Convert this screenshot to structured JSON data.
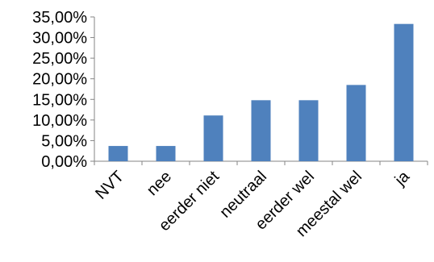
{
  "chart_data": {
    "type": "bar",
    "categories": [
      "NVT",
      "nee",
      "eerder niet",
      "neutraal",
      "eerder wel",
      "meestal wel",
      "ja"
    ],
    "values": [
      3.7,
      3.7,
      11.1,
      14.8,
      14.8,
      18.5,
      33.3
    ],
    "ylim": [
      0,
      35
    ],
    "yticks": [
      "0,00%",
      "5,00%",
      "10,00%",
      "15,00%",
      "20,00%",
      "25,00%",
      "30,00%",
      "35,00%"
    ],
    "grid": false,
    "legend": "none",
    "colors": {
      "bar": "#4F81BD",
      "axis": "#868686"
    }
  }
}
